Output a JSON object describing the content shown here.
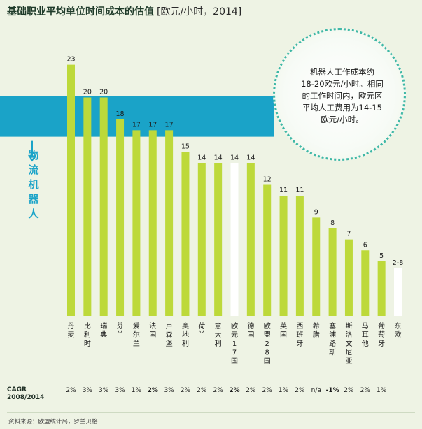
{
  "chart_data": {
    "type": "bar",
    "title": "基础职业平均单位时间成本的估值",
    "unit": "[欧元/小时，2014]",
    "categories": [
      "丹麦",
      "比利时",
      "瑞典",
      "芬兰",
      "爱尔兰",
      "法国",
      "卢森堡",
      "奥地利",
      "荷兰",
      "意大利",
      "欧元17国",
      "德国",
      "欧盟28国",
      "英国",
      "西班牙",
      "希腊",
      "塞浦路斯",
      "斯洛文尼亚",
      "马耳他",
      "葡萄牙",
      "东欧"
    ],
    "values": [
      23,
      20,
      20,
      18,
      17,
      17,
      17,
      15,
      14,
      14,
      14,
      14,
      12,
      11,
      11,
      9,
      8,
      7,
      6,
      5,
      5
    ],
    "value_labels": [
      "23",
      "20",
      "20",
      "18",
      "17",
      "17",
      "17",
      "15",
      "14",
      "14",
      "14",
      "14",
      "12",
      "11",
      "11",
      "9",
      "8",
      "7",
      "6",
      "5",
      "2-8"
    ],
    "highlight_indices": [
      10,
      20
    ],
    "ylim": [
      0,
      24
    ],
    "band": {
      "from": 14,
      "to": 20,
      "label": "物流机器人"
    },
    "colors": {
      "bar": "#bdd93a",
      "highlight": "#ffffff",
      "band": "#1aa3c8",
      "background": "#eef3e4"
    },
    "cagr": {
      "label": "CAGR\n2008/2014",
      "values": [
        "2%",
        "3%",
        "3%",
        "3%",
        "1%",
        "2%",
        "3%",
        "2%",
        "2%",
        "2%",
        "2%",
        "2%",
        "2%",
        "1%",
        "2%",
        "n/a",
        "-1%",
        "2%",
        "2%",
        "1%",
        ""
      ],
      "bold_indices": [
        5,
        10,
        16
      ]
    },
    "annotation": "机器人工作成本约\n18-20欧元/小时。相同\n的工作时间内，欧元区\n平均人工费用为14-15\n欧元/小时。"
  },
  "source": "资料来源：欧盟统计局，罗兰贝格"
}
